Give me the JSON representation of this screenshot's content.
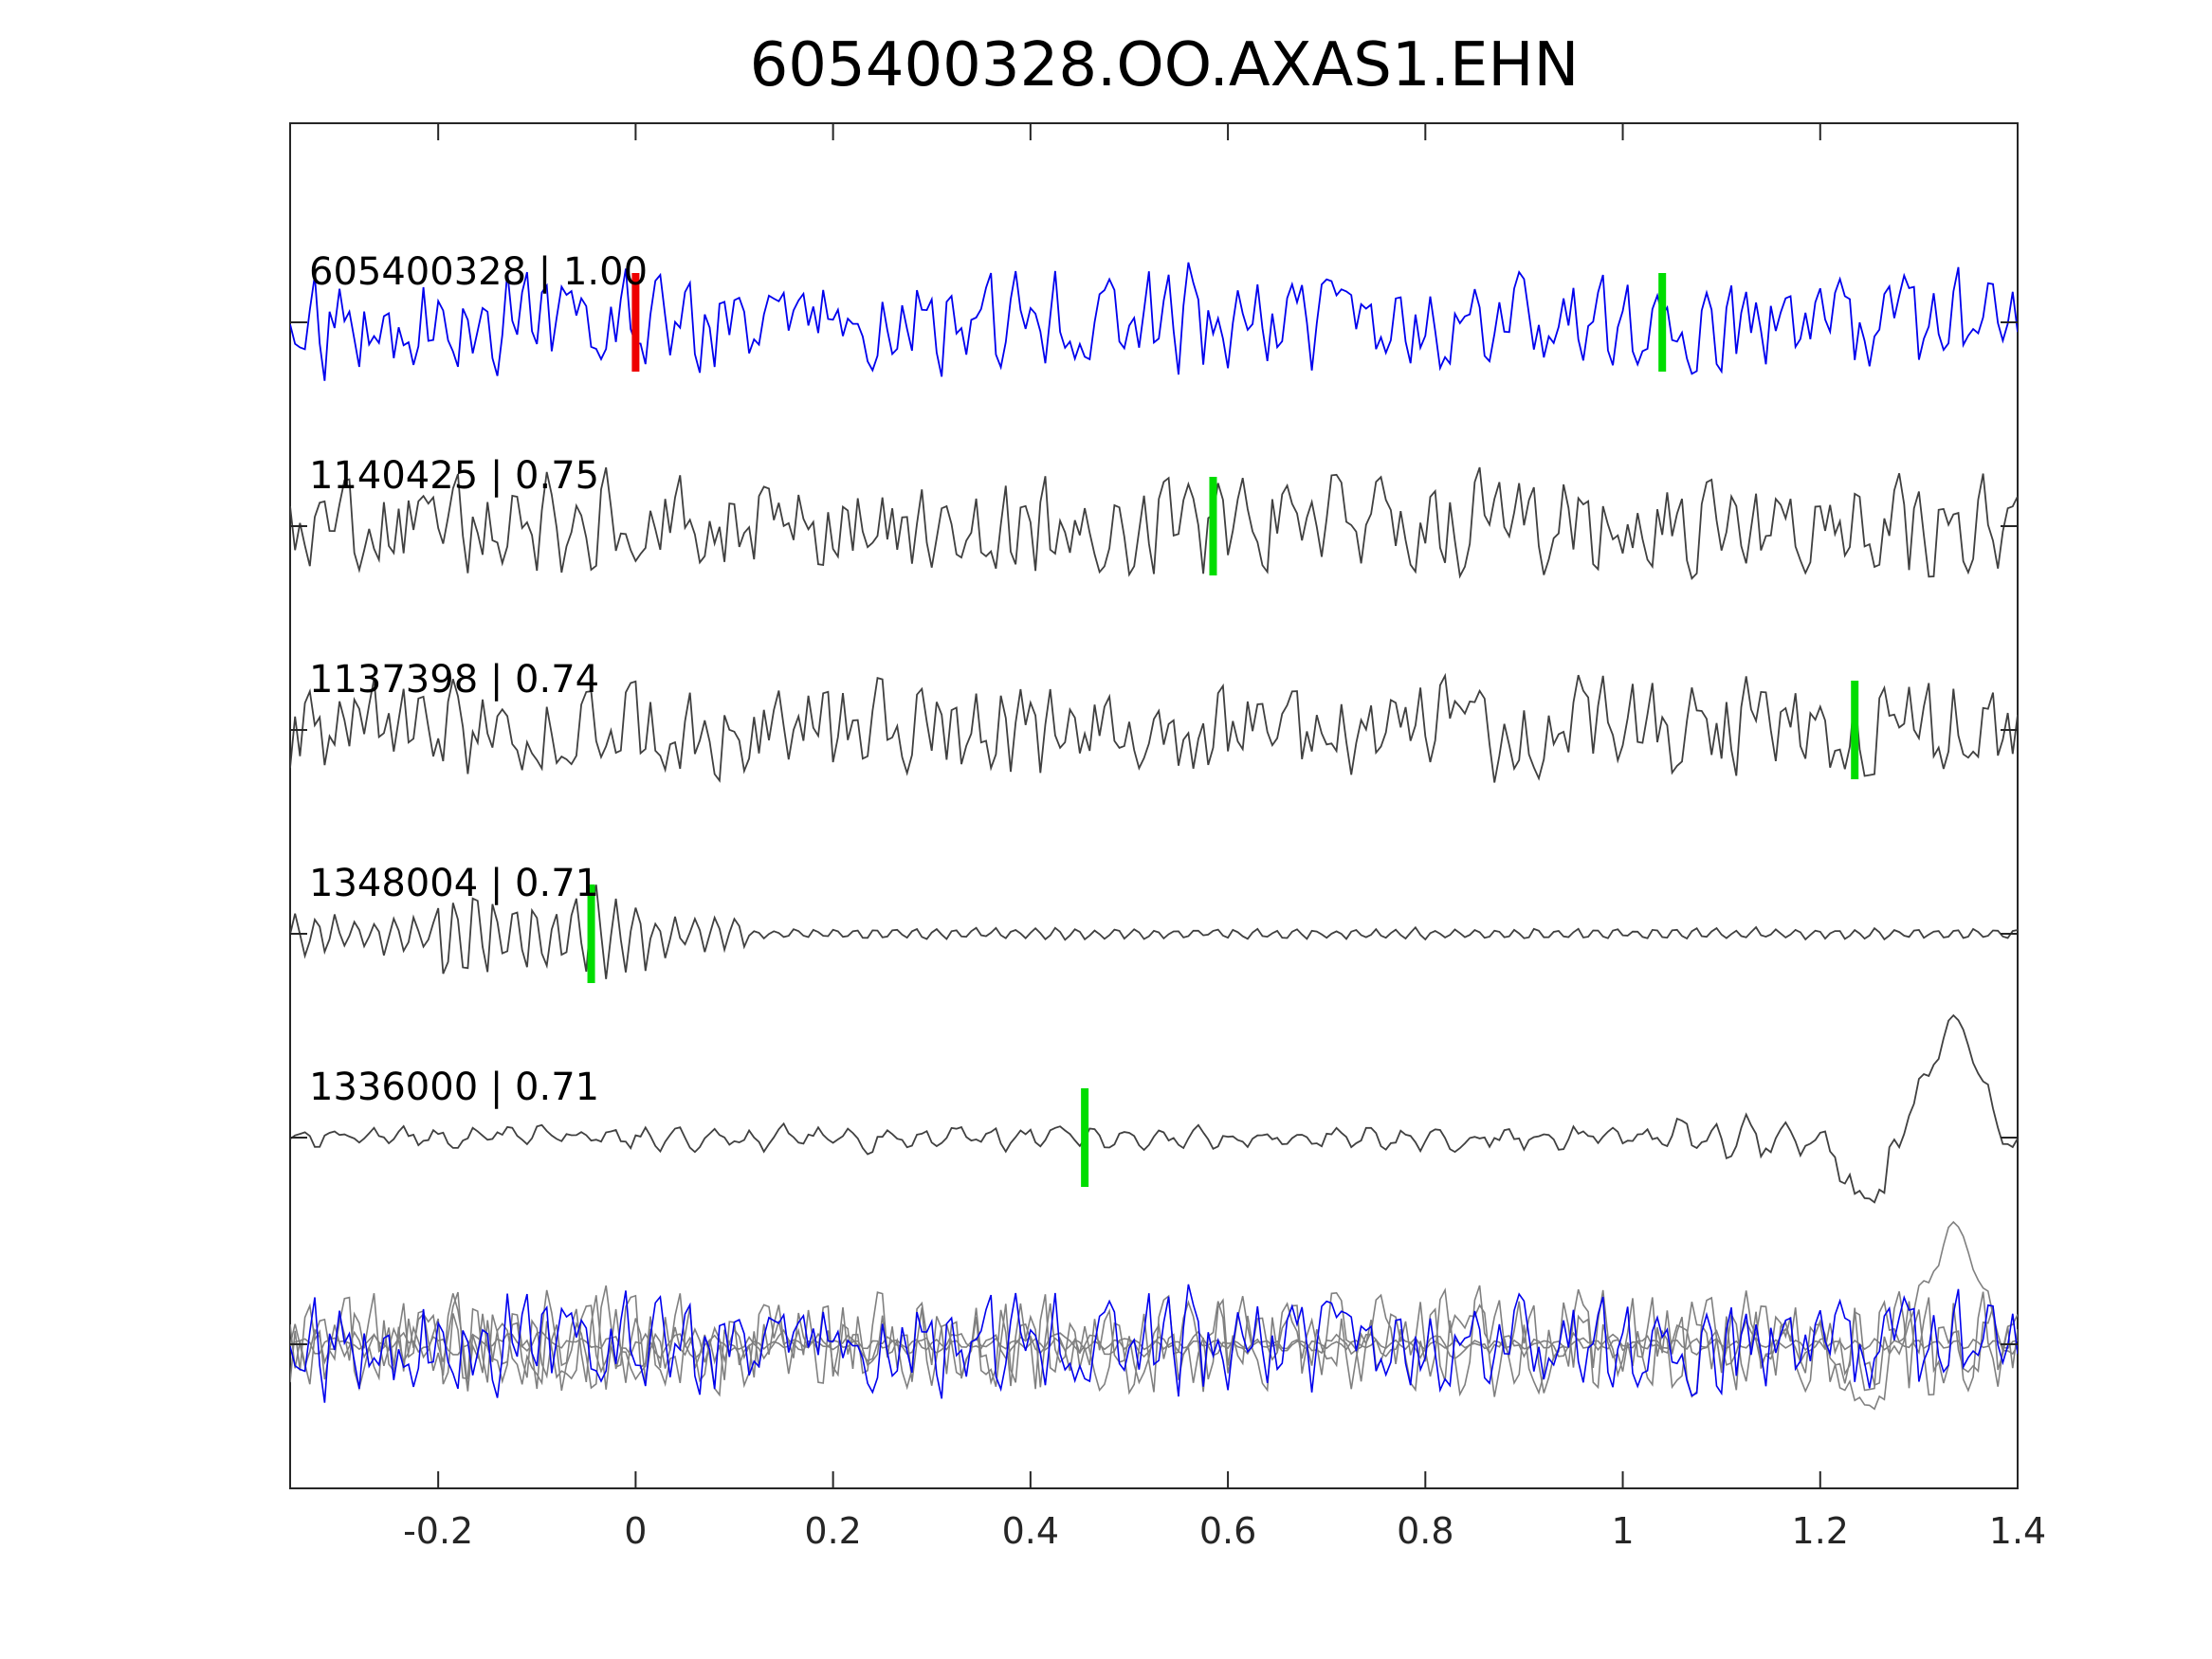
{
  "chart_data": {
    "type": "line",
    "title": "605400328.OO.AXAS1.EHN",
    "xlabel": "",
    "ylabel": "",
    "xlim": [
      -0.35,
      1.4
    ],
    "x_ticks": [
      -0.2,
      0,
      0.2,
      0.4,
      0.6,
      0.8,
      1,
      1.2,
      1.4
    ],
    "x_tick_labels": [
      "-0.2",
      "0",
      "0.2",
      "0.4",
      "0.6",
      "0.8",
      "1",
      "1.2",
      "1.4"
    ],
    "grid": false,
    "legend": "none",
    "colors": {
      "reference": "#0000ee",
      "template": "#404040",
      "stack": "#808080",
      "pick_reference": "#ee0000",
      "pick_template": "#00dd00"
    },
    "series": [
      {
        "label": "605400328 | 1.00",
        "role": "reference",
        "color": "#0000ee",
        "amplitude": 1.0,
        "seed": 11,
        "pick": 0.0,
        "pick_color": "#ee0000"
      },
      {
        "label": "1140425 | 0.75",
        "role": "template",
        "color": "#404040",
        "amplitude": 1.0,
        "seed": 23,
        "pick": 0.585,
        "pick_color": "#00dd00"
      },
      {
        "label": "1137398 | 0.74",
        "role": "template",
        "color": "#404040",
        "amplitude": 1.0,
        "seed": 37,
        "pick": 1.235,
        "pick_color": "#00dd00"
      },
      {
        "label": "1348004 | 0.71",
        "role": "template",
        "color": "#404040",
        "amplitude": 1.0,
        "seed": 41,
        "pick": -0.045,
        "pick_color": "#00dd00"
      },
      {
        "label": "1336000 | 0.71",
        "role": "template",
        "color": "#404040",
        "amplitude": 1.0,
        "seed": 53,
        "pick": 0.455,
        "pick_color": "#00dd00"
      }
    ],
    "extra_pick": {
      "x": 1.04,
      "color": "#00dd00",
      "on_series": 0
    }
  }
}
